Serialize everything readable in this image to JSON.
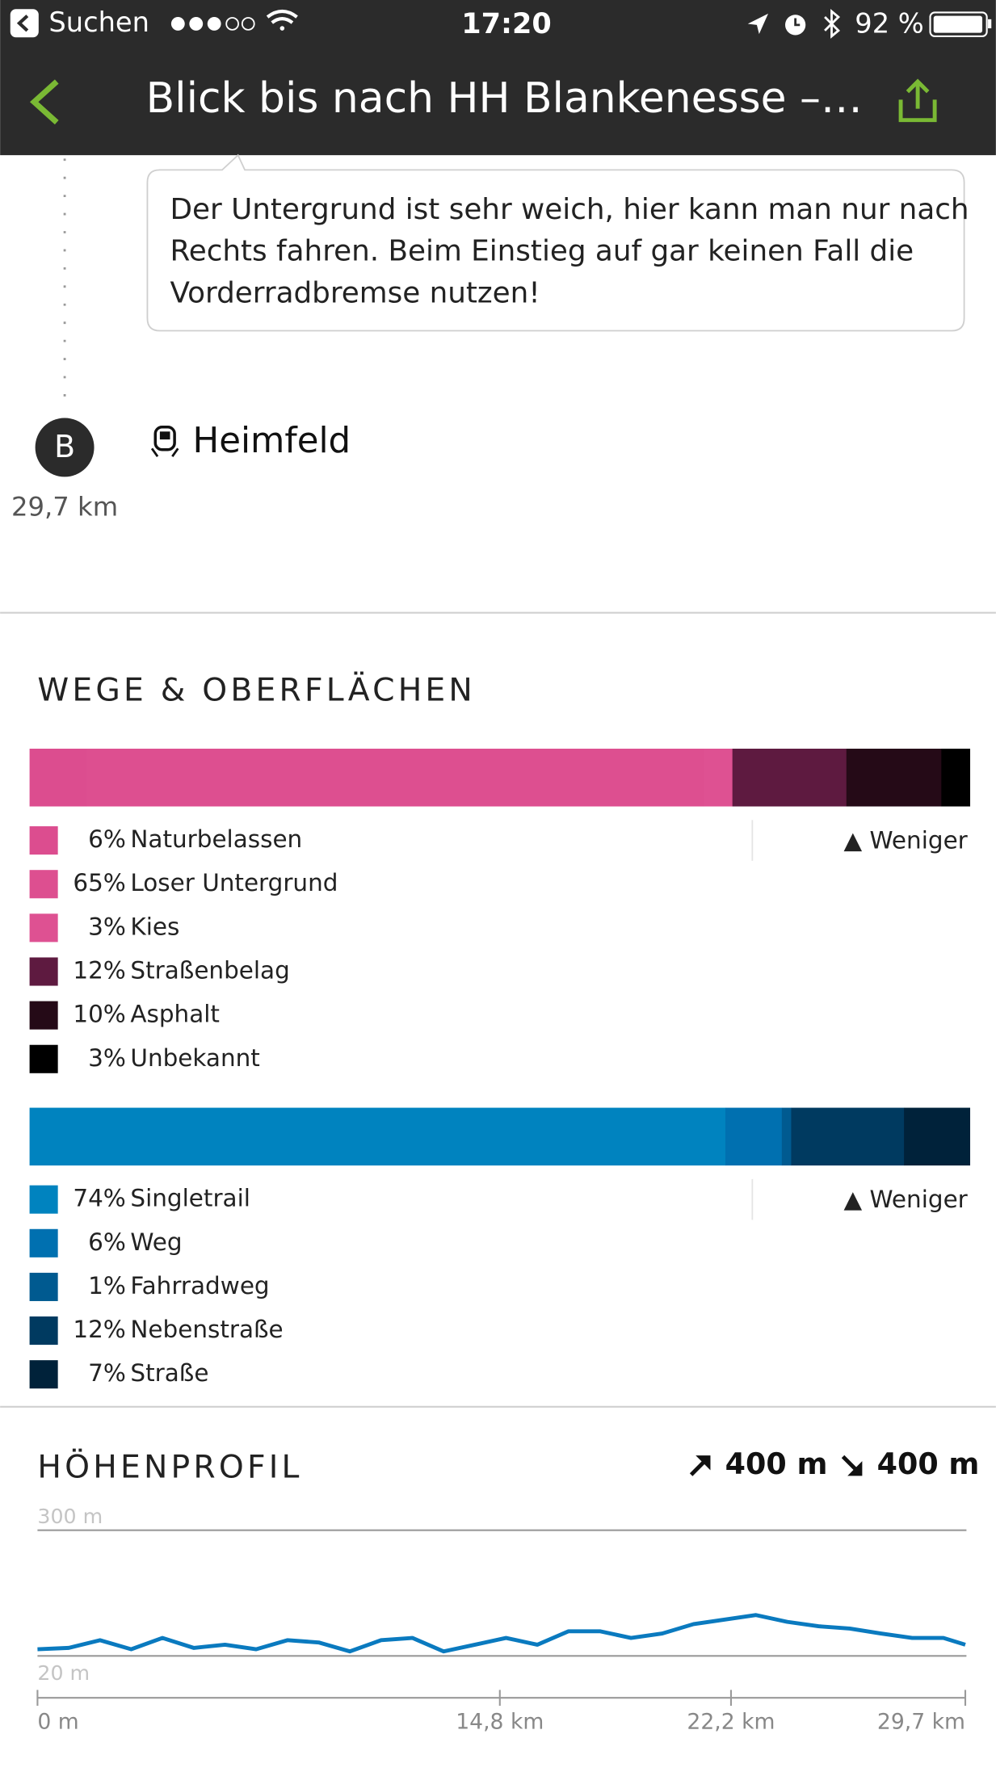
{
  "status_bar": {
    "back_label": "Suchen",
    "time": "17:20",
    "battery": "92 %"
  },
  "header": {
    "title": "Blick bis nach HH Blankenesse –…"
  },
  "tip": {
    "lines": [
      "Der Untergrund ist sehr weich, hier kann man nur nach",
      "Rechts fahren. Beim Einstieg auf gar keinen Fall die",
      "Vorderradbremse nutzen!"
    ]
  },
  "waypoint": {
    "letter": "B",
    "name": "Heimfeld",
    "distance": "29,7 km"
  },
  "surfaces_section": {
    "title": "WEGE & OBERFLÄCHEN"
  },
  "chart_data": [
    {
      "type": "stacked_bar",
      "categories": [
        "Naturbelassen",
        "Loser Untergrund",
        "Kies",
        "Straßenbelag",
        "Asphalt",
        "Unbekannt"
      ],
      "values": [
        6,
        65,
        3,
        12,
        10,
        3
      ],
      "value_labels": [
        "6%",
        "65%",
        "3%",
        "12%",
        "10%",
        "3%"
      ],
      "colors": [
        "#dc4d8f",
        "#dd4f90",
        "#de5192",
        "#5e1a40",
        "#250a17",
        "#000000"
      ],
      "toggle": "▲ Weniger"
    },
    {
      "type": "stacked_bar",
      "categories": [
        "Singletrail",
        "Weg",
        "Fahrradweg",
        "Nebenstraße",
        "Straße"
      ],
      "values": [
        74,
        6,
        1,
        12,
        7
      ],
      "value_labels": [
        "74%",
        "6%",
        "1%",
        "12%",
        "7%"
      ],
      "colors": [
        "#0083bf",
        "#0070b0",
        "#005a90",
        "#003a60",
        "#00223a"
      ],
      "toggle": "▲ Weniger"
    },
    {
      "type": "line",
      "title": "HÖHENPROFIL",
      "ascent": "400 m",
      "descent": "400 m",
      "x": [
        0,
        1,
        2,
        3,
        4,
        5,
        6,
        7,
        8,
        9,
        10,
        11,
        12,
        13,
        14,
        15,
        16,
        17,
        18,
        19,
        20,
        21,
        22,
        23,
        24,
        25,
        26,
        27,
        28,
        29,
        29.7
      ],
      "series": [
        {
          "color": "#0a7abf",
          "values": [
            35,
            38,
            55,
            35,
            60,
            38,
            45,
            35,
            55,
            50,
            30,
            55,
            60,
            30,
            45,
            60,
            45,
            75,
            75,
            60,
            70,
            91,
            101,
            111,
            96,
            86,
            81,
            70,
            60,
            60,
            45
          ]
        }
      ],
      "xlim": [
        0,
        29.7
      ],
      "ylim": [
        20,
        300
      ],
      "xticks": [
        {
          "value": 0,
          "label": "0 m"
        },
        {
          "value": 14.8,
          "label": "14,8 km"
        },
        {
          "value": 22.2,
          "label": "22,2 km"
        },
        {
          "value": 29.7,
          "label": "29,7 km"
        }
      ],
      "yticks": [
        {
          "value": 300,
          "label": "300 m"
        },
        {
          "value": 20,
          "label": "20 m"
        }
      ]
    }
  ]
}
